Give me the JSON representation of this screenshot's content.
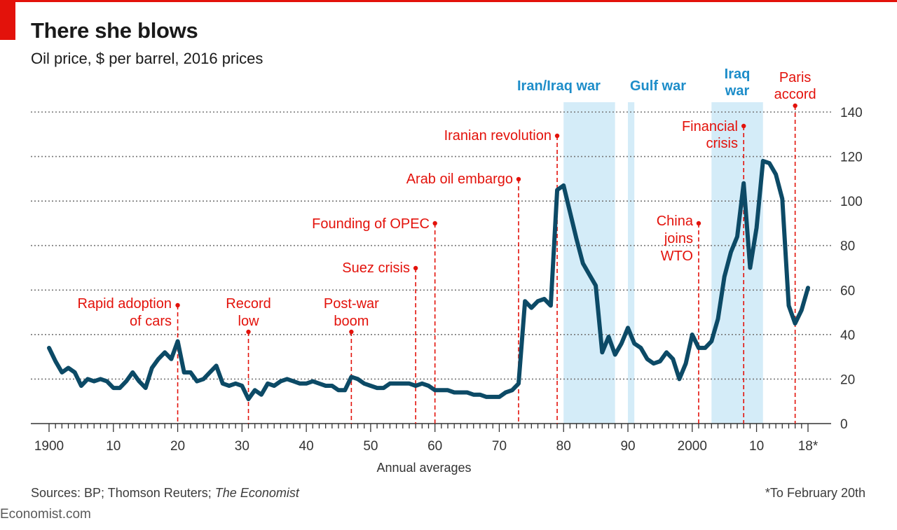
{
  "title": "There she blows",
  "subtitle": "Oil price, $ per barrel, 2016 prices",
  "source_prefix": "Sources: BP; Thomson Reuters; ",
  "source_italic": "The Economist",
  "footnote": "*To February 20th",
  "brand": "Economist.com",
  "colors": {
    "line": "#0c4a66",
    "event": "#e3120b",
    "war_text": "#1d8dc9",
    "war_band": "#d4ecf8",
    "grid": "#777777"
  },
  "chart_data": {
    "type": "line",
    "x_axis_label": "Annual averages",
    "xlim": [
      1897,
      2021
    ],
    "ylim": [
      0,
      140
    ],
    "grid": true,
    "y_axis_side": "right",
    "y_ticks": [
      0,
      20,
      40,
      60,
      80,
      100,
      120,
      140
    ],
    "x_tick_labels": [
      {
        "x": 1900,
        "label": "1900"
      },
      {
        "x": 1910,
        "label": "10"
      },
      {
        "x": 1920,
        "label": "20"
      },
      {
        "x": 1930,
        "label": "30"
      },
      {
        "x": 1940,
        "label": "40"
      },
      {
        "x": 1950,
        "label": "50"
      },
      {
        "x": 1960,
        "label": "60"
      },
      {
        "x": 1970,
        "label": "70"
      },
      {
        "x": 1980,
        "label": "80"
      },
      {
        "x": 1990,
        "label": "90"
      },
      {
        "x": 2000,
        "label": "2000"
      },
      {
        "x": 2010,
        "label": "10"
      },
      {
        "x": 2018,
        "label": "18*"
      }
    ],
    "series": [
      {
        "x": [
          1900,
          1901,
          1902,
          1903,
          1904,
          1905,
          1906,
          1907,
          1908,
          1909,
          1910,
          1911,
          1912,
          1913,
          1914,
          1915,
          1916,
          1917,
          1918,
          1919,
          1920,
          1921,
          1922,
          1923,
          1924,
          1925,
          1926,
          1927,
          1928,
          1929,
          1930,
          1931,
          1932,
          1933,
          1934,
          1935,
          1936,
          1937,
          1938,
          1939,
          1940,
          1941,
          1942,
          1943,
          1944,
          1945,
          1946,
          1947,
          1948,
          1949,
          1950,
          1951,
          1952,
          1953,
          1954,
          1955,
          1956,
          1957,
          1958,
          1959,
          1960,
          1961,
          1962,
          1963,
          1964,
          1965,
          1966,
          1967,
          1968,
          1969,
          1970,
          1971,
          1972,
          1973,
          1974,
          1975,
          1976,
          1977,
          1978,
          1979,
          1980,
          1981,
          1982,
          1983,
          1984,
          1985,
          1986,
          1987,
          1988,
          1989,
          1990,
          1991,
          1992,
          1993,
          1994,
          1995,
          1996,
          1997,
          1998,
          1999,
          2000,
          2001,
          2002,
          2003,
          2004,
          2005,
          2006,
          2007,
          2008,
          2009,
          2010,
          2011,
          2012,
          2013,
          2014,
          2015,
          2016,
          2017,
          2018
        ],
        "values": [
          34,
          28,
          23,
          25,
          23,
          17,
          20,
          19,
          20,
          19,
          16,
          16,
          19,
          23,
          19,
          16,
          25,
          29,
          32,
          29,
          37,
          23,
          23,
          19,
          20,
          23,
          26,
          18,
          17,
          18,
          17,
          11,
          15,
          13,
          18,
          17,
          19,
          20,
          19,
          18,
          18,
          19,
          18,
          17,
          17,
          15,
          15,
          21,
          20,
          18,
          17,
          16,
          16,
          18,
          18,
          18,
          18,
          17,
          18,
          17,
          15,
          15,
          15,
          14,
          14,
          14,
          13,
          13,
          12,
          12,
          12,
          14,
          15,
          18,
          55,
          52,
          55,
          56,
          53,
          105,
          107,
          95,
          83,
          72,
          67,
          62,
          32,
          39,
          31,
          36,
          43,
          36,
          34,
          29,
          27,
          28,
          32,
          29,
          20,
          27,
          40,
          34,
          34,
          37,
          47,
          66,
          77,
          84,
          108,
          70,
          88,
          118,
          117,
          112,
          101,
          53,
          45,
          51,
          61
        ]
      }
    ],
    "war_periods": [
      {
        "label": "Iran/Iraq war",
        "start": 1980,
        "end": 1988
      },
      {
        "label": "Gulf war",
        "start": 1990,
        "end": 1991
      },
      {
        "label": "Iraq war",
        "start": 2003,
        "end": 2011
      }
    ],
    "events": [
      {
        "year": 1920,
        "label": "Rapid adoption of cars"
      },
      {
        "year": 1931,
        "label": "Record low"
      },
      {
        "year": 1947,
        "label": "Post-war boom"
      },
      {
        "year": 1957,
        "label": "Suez crisis"
      },
      {
        "year": 1960,
        "label": "Founding of OPEC"
      },
      {
        "year": 1973,
        "label": "Arab oil embargo"
      },
      {
        "year": 1979,
        "label": "Iranian revolution"
      },
      {
        "year": 2001,
        "label": "China joins WTO"
      },
      {
        "year": 2008,
        "label": "Financial crisis"
      },
      {
        "year": 2016,
        "label": "Paris accord"
      }
    ]
  }
}
